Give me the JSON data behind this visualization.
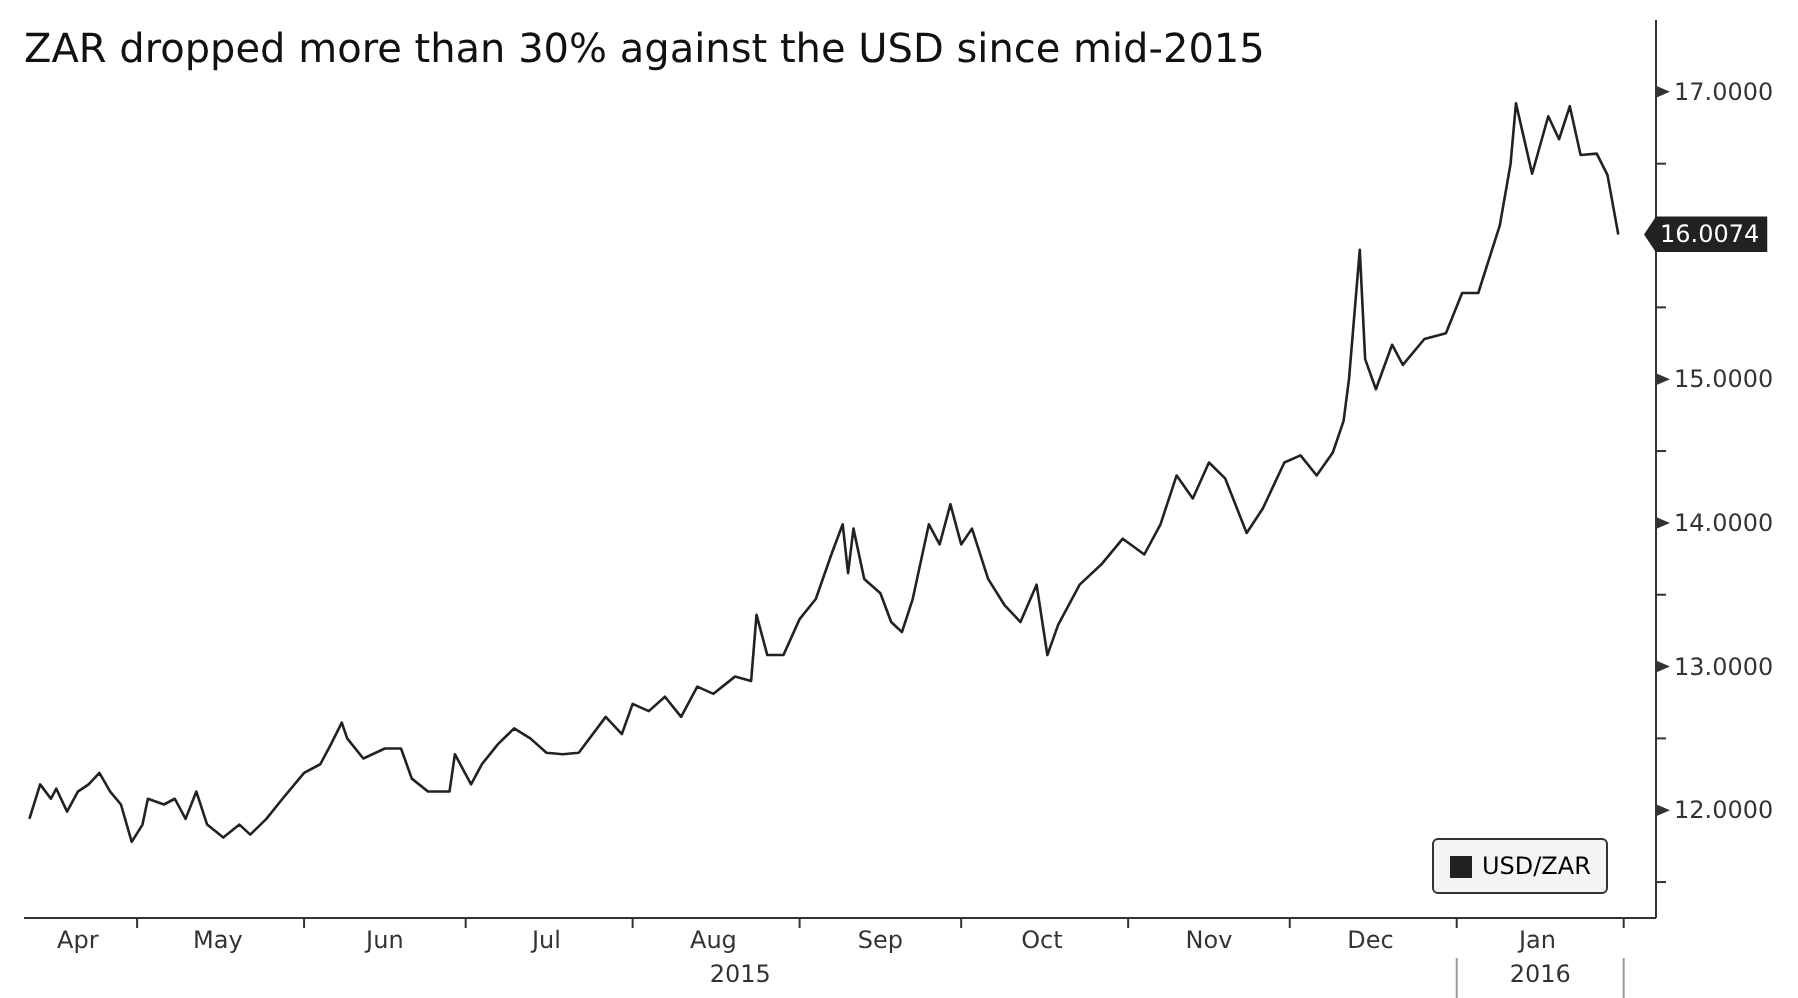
{
  "chart_data": {
    "type": "line",
    "title": "ZAR dropped more than 30% against the USD since mid-2015",
    "annotations": [
      "2015",
      "2016"
    ],
    "legend": "bottom right",
    "xlim": [
      "2015-04-10",
      "2016-02-07"
    ],
    "xticks": [
      {
        "value": "2015-04-20",
        "label": "Apr"
      },
      {
        "value": "2015-05-01",
        "label": null
      },
      {
        "value": "2015-05-16",
        "label": "May"
      },
      {
        "value": "2015-06-01",
        "label": null
      },
      {
        "value": "2015-06-16",
        "label": "Jun"
      },
      {
        "value": "2015-07-01",
        "label": null
      },
      {
        "value": "2015-07-16",
        "label": "Jul"
      },
      {
        "value": "2015-08-01",
        "label": null
      },
      {
        "value": "2015-08-16",
        "label": "Aug"
      },
      {
        "value": "2015-09-01",
        "label": null
      },
      {
        "value": "2015-09-16",
        "label": "Sep"
      },
      {
        "value": "2015-10-01",
        "label": null
      },
      {
        "value": "2015-10-16",
        "label": "Oct"
      },
      {
        "value": "2015-11-01",
        "label": null
      },
      {
        "value": "2015-11-16",
        "label": "Nov"
      },
      {
        "value": "2015-12-01",
        "label": null
      },
      {
        "value": "2015-12-16",
        "label": "Dec"
      },
      {
        "value": "2016-01-01",
        "label": null
      },
      {
        "value": "2016-01-16",
        "label": "Jan"
      },
      {
        "value": "2016-02-01",
        "label": null
      }
    ],
    "ylim": [
      11.25,
      17.5
    ],
    "yticks": [
      {
        "value": 11.5,
        "label": null
      },
      {
        "value": 12,
        "label": "12.0000"
      },
      {
        "value": 12.5,
        "label": null
      },
      {
        "value": 13,
        "label": "13.0000"
      },
      {
        "value": 13.5,
        "label": null
      },
      {
        "value": 14,
        "label": "14.0000"
      },
      {
        "value": 14.5,
        "label": null
      },
      {
        "value": 15,
        "label": "15.0000"
      },
      {
        "value": 15.5,
        "label": null
      },
      {
        "value": 16,
        "label": null
      },
      {
        "value": 16.5,
        "label": null
      },
      {
        "value": 17,
        "label": "17.0000"
      }
    ],
    "series": [
      {
        "name": "USD/ZAR",
        "color": "#222222",
        "x": [
          "2015-04-11",
          "2015-04-13",
          "2015-04-15",
          "2015-04-16",
          "2015-04-18",
          "2015-04-20",
          "2015-04-22",
          "2015-04-24",
          "2015-04-26",
          "2015-04-28",
          "2015-04-30",
          "2015-05-02",
          "2015-05-03",
          "2015-05-06",
          "2015-05-08",
          "2015-05-10",
          "2015-05-12",
          "2015-05-14",
          "2015-05-17",
          "2015-05-20",
          "2015-05-22",
          "2015-05-25",
          "2015-05-28",
          "2015-06-01",
          "2015-06-04",
          "2015-06-06",
          "2015-06-08",
          "2015-06-09",
          "2015-06-12",
          "2015-06-16",
          "2015-06-19",
          "2015-06-21",
          "2015-06-24",
          "2015-06-28",
          "2015-06-29",
          "2015-07-02",
          "2015-07-04",
          "2015-07-07",
          "2015-07-10",
          "2015-07-13",
          "2015-07-16",
          "2015-07-19",
          "2015-07-22",
          "2015-07-27",
          "2015-07-30",
          "2015-08-01",
          "2015-08-04",
          "2015-08-07",
          "2015-08-10",
          "2015-08-13",
          "2015-08-16",
          "2015-08-20",
          "2015-08-23",
          "2015-08-24",
          "2015-08-26",
          "2015-08-29",
          "2015-09-01",
          "2015-09-04",
          "2015-09-07",
          "2015-09-09",
          "2015-09-10",
          "2015-09-11",
          "2015-09-13",
          "2015-09-16",
          "2015-09-18",
          "2015-09-20",
          "2015-09-22",
          "2015-09-25",
          "2015-09-27",
          "2015-09-29",
          "2015-10-01",
          "2015-10-03",
          "2015-10-06",
          "2015-10-09",
          "2015-10-12",
          "2015-10-15",
          "2015-10-17",
          "2015-10-19",
          "2015-10-23",
          "2015-10-27",
          "2015-10-31",
          "2015-11-04",
          "2015-11-07",
          "2015-11-10",
          "2015-11-13",
          "2015-11-16",
          "2015-11-19",
          "2015-11-23",
          "2015-11-26",
          "2015-11-30",
          "2015-12-03",
          "2015-12-06",
          "2015-12-09",
          "2015-12-11",
          "2015-12-12",
          "2015-12-14",
          "2015-12-15",
          "2015-12-17",
          "2015-12-20",
          "2015-12-22",
          "2015-12-26",
          "2015-12-30",
          "2016-01-02",
          "2016-01-05",
          "2016-01-09",
          "2016-01-11",
          "2016-01-12",
          "2016-01-15",
          "2016-01-18",
          "2016-01-20",
          "2016-01-22",
          "2016-01-24",
          "2016-01-27",
          "2016-01-29",
          "2016-01-31"
        ],
        "values": [
          11.94,
          12.18,
          12.08,
          12.15,
          11.99,
          12.13,
          12.18,
          12.26,
          12.13,
          12.04,
          11.78,
          11.9,
          12.08,
          12.04,
          12.08,
          11.94,
          12.13,
          11.9,
          11.81,
          11.9,
          11.83,
          11.94,
          12.08,
          12.26,
          12.32,
          12.46,
          12.61,
          12.5,
          12.36,
          12.43,
          12.43,
          12.22,
          12.13,
          12.13,
          12.39,
          12.18,
          12.32,
          12.46,
          12.57,
          12.5,
          12.4,
          12.39,
          12.4,
          12.65,
          12.53,
          12.74,
          12.69,
          12.79,
          12.65,
          12.86,
          12.81,
          12.93,
          12.9,
          13.36,
          13.08,
          13.08,
          13.33,
          13.47,
          13.79,
          13.99,
          13.65,
          13.96,
          13.61,
          13.51,
          13.31,
          13.24,
          13.47,
          13.99,
          13.85,
          14.13,
          13.85,
          13.96,
          13.61,
          13.43,
          13.31,
          13.57,
          13.08,
          13.29,
          13.57,
          13.71,
          13.89,
          13.78,
          13.99,
          14.33,
          14.17,
          14.42,
          14.31,
          13.93,
          14.1,
          14.42,
          14.47,
          14.33,
          14.49,
          14.71,
          15.0,
          15.9,
          15.14,
          14.93,
          15.24,
          15.1,
          15.28,
          15.32,
          15.6,
          15.6,
          16.07,
          16.5,
          16.92,
          16.43,
          16.83,
          16.67,
          16.9,
          16.56,
          16.57,
          16.42,
          16.0074
        ],
        "value_labels": [
          null,
          null,
          null,
          null,
          null,
          null,
          null,
          null,
          null,
          null,
          null,
          null,
          null,
          null,
          null,
          null,
          null,
          null,
          null,
          null,
          null,
          null,
          null,
          null,
          null,
          null,
          null,
          null,
          null,
          null,
          null,
          null,
          null,
          null,
          null,
          null,
          null,
          null,
          null,
          null,
          null,
          null,
          null,
          null,
          null,
          null,
          null,
          null,
          null,
          null,
          null,
          null,
          null,
          null,
          null,
          null,
          null,
          null,
          null,
          null,
          null,
          null,
          null,
          null,
          null,
          null,
          null,
          null,
          null,
          null,
          null,
          null,
          null,
          null,
          null,
          null,
          null,
          null,
          null,
          null,
          null,
          null,
          null,
          null,
          null,
          null,
          null,
          null,
          null,
          null,
          null,
          null,
          null,
          null,
          null,
          null,
          null,
          null,
          null,
          null,
          null,
          null,
          null,
          null,
          null,
          null,
          null,
          null,
          null,
          null,
          null,
          null,
          null,
          null,
          "16.0074"
        ]
      }
    ]
  }
}
